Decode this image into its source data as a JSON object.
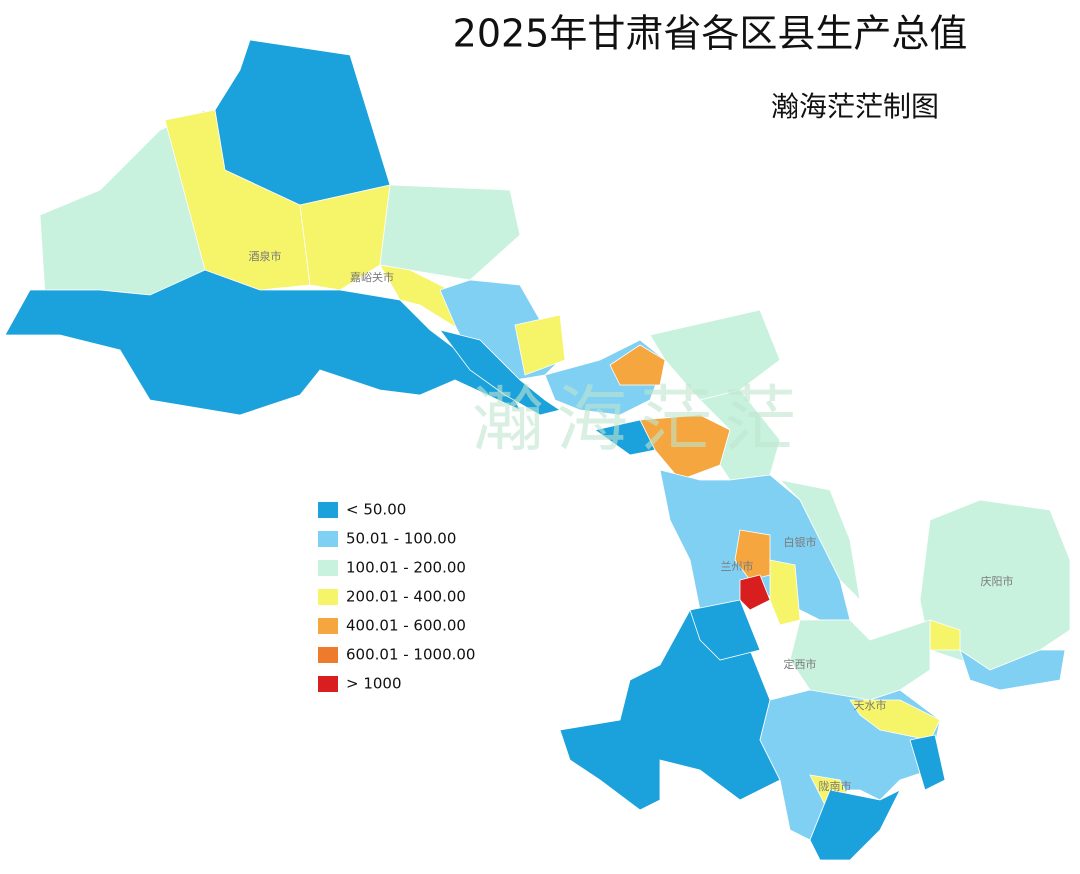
{
  "title": "2025年甘肃省各区县生产总值",
  "subtitle": "瀚海茫茫制图",
  "watermark": "瀚海茫茫",
  "legend": [
    {
      "label": "< 50.00",
      "color": "#1ba1dc"
    },
    {
      "label": "50.01 - 100.00",
      "color": "#80d0f3"
    },
    {
      "label": "100.01 - 200.00",
      "color": "#c8f1de"
    },
    {
      "label": "200.01 - 400.00",
      "color": "#f6f468"
    },
    {
      "label": "400.01 - 600.00",
      "color": "#f5a63e"
    },
    {
      "label": "600.01 - 1000.00",
      "color": "#ee7a2c"
    },
    {
      "label": "> 1000",
      "color": "#d81e1e"
    }
  ],
  "map_labels": [
    "酒泉市",
    "嘉峪关市",
    "兰州市",
    "白银市",
    "庆阳市",
    "定西市",
    "天水市",
    "陇南市"
  ]
}
